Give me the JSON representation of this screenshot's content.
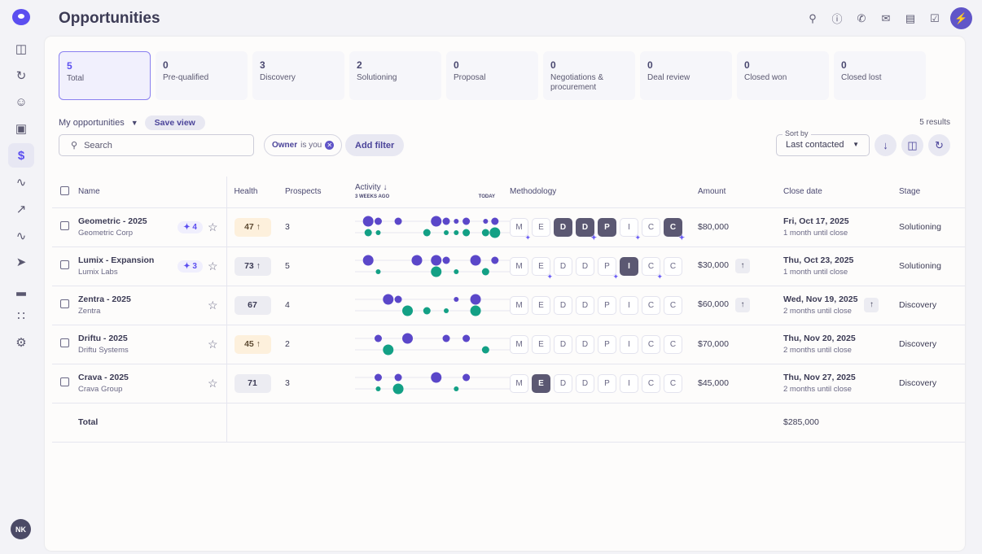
{
  "page": {
    "title": "Opportunities"
  },
  "sidebar": {
    "items": [
      "layout",
      "activity",
      "contacts",
      "deals",
      "opportunities",
      "signals",
      "analytics",
      "sequences",
      "send",
      "reports",
      "apps",
      "settings"
    ],
    "avatar": "NK"
  },
  "stages": [
    {
      "count": "5",
      "label": "Total",
      "selected": true
    },
    {
      "count": "0",
      "label": "Pre-qualified"
    },
    {
      "count": "3",
      "label": "Discovery"
    },
    {
      "count": "2",
      "label": "Solutioning"
    },
    {
      "count": "0",
      "label": "Proposal"
    },
    {
      "count": "0",
      "label": "Negotiations & procurement"
    },
    {
      "count": "0",
      "label": "Deal review"
    },
    {
      "count": "0",
      "label": "Closed won"
    },
    {
      "count": "0",
      "label": "Closed lost"
    }
  ],
  "view": {
    "name": "My opportunities",
    "save": "Save view",
    "results": "5 results"
  },
  "search": {
    "placeholder": "Search"
  },
  "filter": {
    "field": "Owner",
    "rest": " is you",
    "add": "Add filter"
  },
  "sort": {
    "label": "Sort by",
    "value": "Last contacted"
  },
  "columns": {
    "name": "Name",
    "health": "Health",
    "prospects": "Prospects",
    "activity": "Activity",
    "activity_start": "3 WEEKS AGO",
    "activity_end": "TODAY",
    "methodology": "Methodology",
    "amount": "Amount",
    "close": "Close date",
    "stage": "Stage"
  },
  "colors": {
    "accent": "#5b4ef0",
    "purple": "#5b47c9",
    "teal": "#13a085"
  },
  "methodology_letters": [
    "M",
    "E",
    "D",
    "D",
    "P",
    "I",
    "C",
    "C"
  ],
  "rows": [
    {
      "name": "Geometric - 2025",
      "company": "Geometric Corp",
      "insights": "4",
      "health": "47",
      "health_trend": "up",
      "health_warn": true,
      "prospects": "3",
      "amount": "$80,000",
      "amount_up": false,
      "date": "Fri, Oct 17, 2025",
      "until": "1 month until close",
      "date_up": false,
      "stage": "Solutioning",
      "meth_done": [
        2,
        3,
        4,
        7
      ],
      "meth_spark": [
        0,
        3,
        5,
        7
      ],
      "activity_purple": [
        [
          20,
          3
        ],
        [
          18.5,
          2
        ],
        [
          15.5,
          2
        ],
        [
          9.8,
          3
        ],
        [
          8.3,
          2
        ],
        [
          6.8,
          1
        ],
        [
          5.3,
          2
        ],
        [
          2.4,
          1
        ],
        [
          1,
          2
        ]
      ],
      "activity_teal": [
        [
          20,
          2
        ],
        [
          18.5,
          1
        ],
        [
          11.2,
          2
        ],
        [
          8.3,
          1
        ],
        [
          6.8,
          1
        ],
        [
          5.3,
          2
        ],
        [
          2.4,
          2
        ],
        [
          1,
          3
        ]
      ]
    },
    {
      "name": "Lumix - Expansion",
      "company": "Lumix Labs",
      "insights": "3",
      "health": "73",
      "health_trend": "up",
      "health_warn": false,
      "prospects": "5",
      "amount": "$30,000",
      "amount_up": true,
      "date": "Thu, Oct 23, 2025",
      "until": "1 month until close",
      "date_up": false,
      "stage": "Solutioning",
      "meth_done": [
        5
      ],
      "meth_spark": [
        1,
        4,
        6
      ],
      "activity_purple": [
        [
          20,
          3
        ],
        [
          12.7,
          3
        ],
        [
          9.8,
          3
        ],
        [
          8.3,
          2
        ],
        [
          3.9,
          3
        ],
        [
          1,
          2
        ]
      ],
      "activity_teal": [
        [
          18.5,
          1
        ],
        [
          9.8,
          3
        ],
        [
          6.8,
          1
        ],
        [
          2.4,
          2
        ]
      ]
    },
    {
      "name": "Zentra - 2025",
      "company": "Zentra",
      "insights": "",
      "health": "67",
      "health_trend": "",
      "health_warn": false,
      "prospects": "4",
      "amount": "$60,000",
      "amount_up": true,
      "date": "Wed, Nov 19, 2025",
      "until": "2 months until close",
      "date_up": true,
      "stage": "Discovery",
      "meth_done": [],
      "meth_spark": [],
      "activity_purple": [
        [
          17,
          3
        ],
        [
          15.5,
          2
        ],
        [
          6.8,
          1
        ],
        [
          3.9,
          3
        ]
      ],
      "activity_teal": [
        [
          14.1,
          3
        ],
        [
          11.2,
          2
        ],
        [
          8.3,
          1
        ],
        [
          3.9,
          3
        ]
      ]
    },
    {
      "name": "Driftu - 2025",
      "company": "Driftu Systems",
      "insights": "",
      "health": "45",
      "health_trend": "up",
      "health_warn": true,
      "prospects": "2",
      "amount": "$70,000",
      "amount_up": false,
      "date": "Thu, Nov 20, 2025",
      "until": "2 months until close",
      "date_up": false,
      "stage": "Discovery",
      "meth_done": [],
      "meth_spark": [],
      "activity_purple": [
        [
          18.5,
          2
        ],
        [
          14.1,
          3
        ],
        [
          8.3,
          2
        ],
        [
          5.3,
          2
        ]
      ],
      "activity_teal": [
        [
          17,
          3
        ],
        [
          2.4,
          2
        ]
      ]
    },
    {
      "name": "Crava - 2025",
      "company": "Crava Group",
      "insights": "",
      "health": "71",
      "health_trend": "",
      "health_warn": false,
      "prospects": "3",
      "amount": "$45,000",
      "amount_up": false,
      "date": "Thu, Nov 27, 2025",
      "until": "2 months until close",
      "date_up": false,
      "stage": "Discovery",
      "meth_done": [
        1
      ],
      "meth_spark": [],
      "activity_purple": [
        [
          18.5,
          2
        ],
        [
          15.5,
          2
        ],
        [
          9.8,
          3
        ],
        [
          5.3,
          2
        ]
      ],
      "activity_teal": [
        [
          18.5,
          1
        ],
        [
          15.5,
          3
        ],
        [
          6.8,
          1
        ]
      ]
    }
  ],
  "total": {
    "label": "Total",
    "amount": "$285,000"
  }
}
